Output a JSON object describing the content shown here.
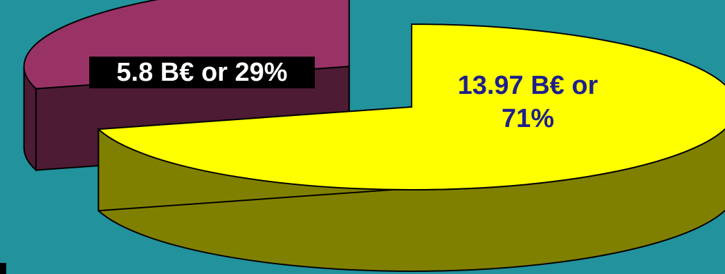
{
  "chart_data": {
    "type": "pie",
    "style": "3d-exploded",
    "title": "",
    "slices": [
      {
        "label": "5.8 B€ or 29%",
        "value": 5.8,
        "percent": 29,
        "color": "#993366",
        "side_color": "#4d1b33",
        "text_color": "#ffffff",
        "text_background": "#000000"
      },
      {
        "label_lines": [
          "13.97 B€ or",
          "71%"
        ],
        "value": 13.97,
        "percent": 71,
        "color": "#ffff00",
        "side_color": "#808000",
        "text_color": "#1f1f8c"
      }
    ]
  },
  "colors": {
    "background": "#22929c",
    "outline": "#000000"
  }
}
